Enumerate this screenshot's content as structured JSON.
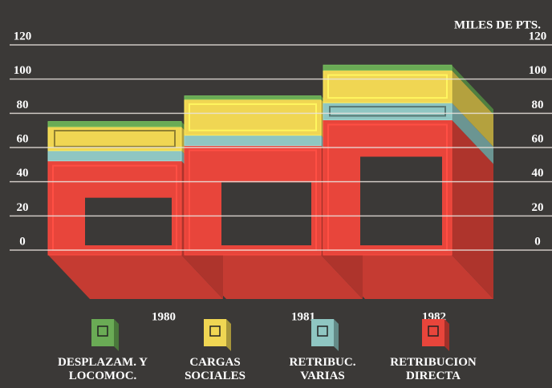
{
  "chart_data": {
    "type": "stacked-bar-3d",
    "unit_label": "MILES DE PTS.",
    "categories": [
      "1980",
      "1981",
      "1982"
    ],
    "series": [
      {
        "name": "RETRIBUCION DIRECTA",
        "color": "#e8453b",
        "values": [
          55,
          64,
          79
        ]
      },
      {
        "name": "RETRIBUC. VARIAS",
        "color": "#8fc6c2",
        "values": [
          6,
          6,
          10
        ]
      },
      {
        "name": "CARGAS SOCIALES",
        "color": "#f0d653",
        "values": [
          14,
          21,
          19
        ]
      },
      {
        "name": "DESPLAZAM. Y LOCOMOC.",
        "color": "#6aab55",
        "values": [
          3,
          2,
          3
        ]
      }
    ],
    "ylim": [
      0,
      120
    ],
    "yticks": [
      0,
      20,
      40,
      60,
      80,
      100,
      120
    ],
    "grid": true
  }
}
